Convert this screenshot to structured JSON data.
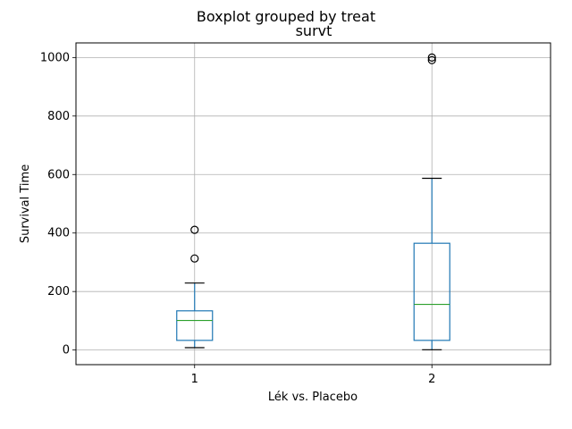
{
  "chart_data": {
    "type": "boxplot",
    "suptitle": "Boxplot grouped by treat",
    "title": "survt",
    "xlabel": "Lék vs. Placebo",
    "ylabel": "Survival Time",
    "categories": [
      "1",
      "2"
    ],
    "ylim": [
      -50,
      1050
    ],
    "yticks": [
      0,
      200,
      400,
      600,
      800,
      1000
    ],
    "grid": true,
    "boxes": [
      {
        "category": "1",
        "whisker_low": 8,
        "q1": 33,
        "median": 101,
        "q3": 134,
        "whisker_high": 229,
        "outliers": [
          313,
          411
        ]
      },
      {
        "category": "2",
        "whisker_low": 1,
        "q1": 33,
        "median": 156,
        "q3": 365,
        "whisker_high": 587,
        "outliers": [
          991,
          1000
        ]
      }
    ],
    "colors": {
      "box": "#1f77b4",
      "median": "#2ca02c",
      "whisker_cap": "#000000",
      "outlier": "#000000",
      "grid": "#b0b0b0"
    }
  }
}
